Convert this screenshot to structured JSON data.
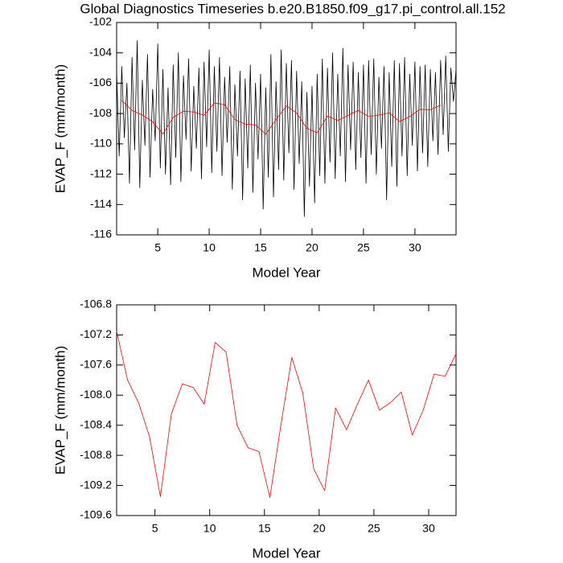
{
  "chart_data": [
    {
      "type": "line",
      "title": "Global Diagnostics Timeseries b.e20.B1850.f09_g17.pi_control.all.152",
      "xlabel": "Model Year",
      "ylabel": "EVAP_F (mm/month)",
      "xlim": [
        1,
        34
      ],
      "xticks": [
        5,
        10,
        15,
        20,
        25,
        30
      ],
      "ylim": [
        -116,
        -102
      ],
      "yticks": [
        -116,
        -114,
        -112,
        -110,
        -108,
        -106,
        -104,
        -102
      ],
      "series": [
        {
          "color": "#000000",
          "x": [
            1,
            1.25,
            1.5,
            1.75,
            2,
            2.25,
            2.5,
            2.75,
            3,
            3.25,
            3.5,
            3.75,
            4,
            4.25,
            4.5,
            4.75,
            5,
            5.25,
            5.5,
            5.75,
            6,
            6.25,
            6.5,
            6.75,
            7,
            7.25,
            7.5,
            7.75,
            8,
            8.25,
            8.5,
            8.75,
            9,
            9.25,
            9.5,
            9.75,
            10,
            10.25,
            10.5,
            10.75,
            11,
            11.25,
            11.5,
            11.75,
            12,
            12.25,
            12.5,
            12.75,
            13,
            13.25,
            13.5,
            13.75,
            14,
            14.25,
            14.5,
            14.75,
            15,
            15.25,
            15.5,
            15.75,
            16,
            16.25,
            16.5,
            16.75,
            17,
            17.25,
            17.5,
            17.75,
            18,
            18.25,
            18.5,
            18.75,
            19,
            19.25,
            19.5,
            19.75,
            20,
            20.25,
            20.5,
            20.75,
            21,
            21.25,
            21.5,
            21.75,
            22,
            22.25,
            22.5,
            22.75,
            23,
            23.25,
            23.5,
            23.75,
            24,
            24.25,
            24.5,
            24.75,
            25,
            25.25,
            25.5,
            25.75,
            26,
            26.25,
            26.5,
            26.75,
            27,
            27.25,
            27.5,
            27.75,
            28,
            28.25,
            28.5,
            28.75,
            29,
            29.25,
            29.5,
            29.75,
            30,
            30.25,
            30.5,
            30.75,
            31,
            31.25,
            31.5,
            31.75,
            32,
            32.25,
            32.5,
            32.75,
            33,
            33.25,
            33.5,
            33.75,
            34
          ],
          "values": [
            -105.2,
            -110.8,
            -104.9,
            -109.6,
            -106.0,
            -112.6,
            -104.3,
            -110.4,
            -103.2,
            -112.9,
            -105.8,
            -110.1,
            -104.1,
            -112.2,
            -106.4,
            -109.8,
            -103.4,
            -111.6,
            -105.1,
            -112.0,
            -106.3,
            -112.7,
            -104.8,
            -110.9,
            -104.0,
            -112.5,
            -105.5,
            -109.7,
            -104.4,
            -111.8,
            -106.2,
            -110.3,
            -105.0,
            -112.3,
            -104.6,
            -110.2,
            -103.8,
            -111.9,
            -104.9,
            -110.5,
            -104.3,
            -112.1,
            -105.6,
            -109.9,
            -104.9,
            -113.0,
            -106.1,
            -110.8,
            -105.2,
            -113.7,
            -105.7,
            -111.6,
            -104.8,
            -113.2,
            -106.0,
            -111.0,
            -105.4,
            -114.3,
            -106.3,
            -112.2,
            -104.1,
            -113.5,
            -105.9,
            -111.7,
            -103.8,
            -112.4,
            -104.7,
            -110.6,
            -104.5,
            -113.0,
            -105.2,
            -111.3,
            -105.9,
            -114.8,
            -106.6,
            -112.8,
            -106.2,
            -113.9,
            -105.4,
            -112.1,
            -104.4,
            -112.6,
            -105.0,
            -111.2,
            -104.0,
            -112.3,
            -105.4,
            -110.8,
            -103.7,
            -112.5,
            -104.8,
            -110.4,
            -104.6,
            -111.7,
            -105.3,
            -110.9,
            -104.8,
            -112.6,
            -104.5,
            -110.7,
            -104.4,
            -112.0,
            -105.6,
            -110.3,
            -104.9,
            -113.7,
            -105.3,
            -111.5,
            -104.5,
            -112.8,
            -104.7,
            -110.8,
            -104.3,
            -112.1,
            -105.4,
            -110.1,
            -104.6,
            -111.8,
            -104.9,
            -110.6,
            -104.8,
            -111.5,
            -105.1,
            -109.8,
            -105.3,
            -110.7,
            -104.5,
            -109.4,
            -104.2,
            -110.5,
            -105.0,
            -107.2,
            -105.1
          ]
        },
        {
          "color": "#ff0000",
          "x": [
            1.5,
            2.5,
            3.5,
            4.5,
            5.5,
            6.5,
            7.5,
            8.5,
            9.5,
            10.5,
            11.5,
            12.5,
            13.5,
            14.5,
            15.5,
            16.5,
            17.5,
            18.5,
            19.5,
            20.5,
            21.5,
            22.5,
            23.5,
            24.5,
            25.5,
            26.5,
            27.5,
            28.5,
            29.5,
            30.5,
            31.5,
            32.5
          ],
          "values": [
            -107.15,
            -107.8,
            -108.1,
            -108.55,
            -109.35,
            -108.25,
            -107.85,
            -107.9,
            -108.12,
            -107.3,
            -107.43,
            -108.4,
            -108.7,
            -108.75,
            -109.36,
            -108.4,
            -107.5,
            -107.97,
            -108.98,
            -109.27,
            -108.17,
            -108.46,
            -108.12,
            -107.8,
            -108.2,
            -108.1,
            -107.96,
            -108.53,
            -108.2,
            -107.72,
            -107.75,
            -107.45
          ]
        }
      ]
    },
    {
      "type": "line",
      "xlabel": "Model Year",
      "ylabel": "EVAP_F (mm/month)",
      "xlim": [
        1.5,
        32.5
      ],
      "xticks": [
        5,
        10,
        15,
        20,
        25,
        30
      ],
      "ylim": [
        -109.6,
        -106.8
      ],
      "yticks": [
        -109.6,
        -109.2,
        -108.8,
        -108.4,
        {
          "value": -108,
          "label": "-108.0"
        },
        -107.6,
        -107.2,
        -106.8
      ],
      "series": [
        {
          "color": "#ff0000",
          "x": [
            1.5,
            2.5,
            3.5,
            4.5,
            5.5,
            6.5,
            7.5,
            8.5,
            9.5,
            10.5,
            11.5,
            12.5,
            13.5,
            14.5,
            15.5,
            16.5,
            17.5,
            18.5,
            19.5,
            20.5,
            21.5,
            22.5,
            23.5,
            24.5,
            25.5,
            26.5,
            27.5,
            28.5,
            29.5,
            30.5,
            31.5,
            32.5
          ],
          "values": [
            -107.15,
            -107.8,
            -108.1,
            -108.55,
            -109.35,
            -108.25,
            -107.85,
            -107.9,
            -108.12,
            -107.3,
            -107.43,
            -108.4,
            -108.7,
            -108.75,
            -109.36,
            -108.4,
            -107.5,
            -107.97,
            -108.98,
            -109.27,
            -108.17,
            -108.46,
            -108.12,
            -107.8,
            -108.2,
            -108.1,
            -107.96,
            -108.53,
            -108.2,
            -107.72,
            -107.75,
            -107.45
          ]
        }
      ]
    }
  ]
}
